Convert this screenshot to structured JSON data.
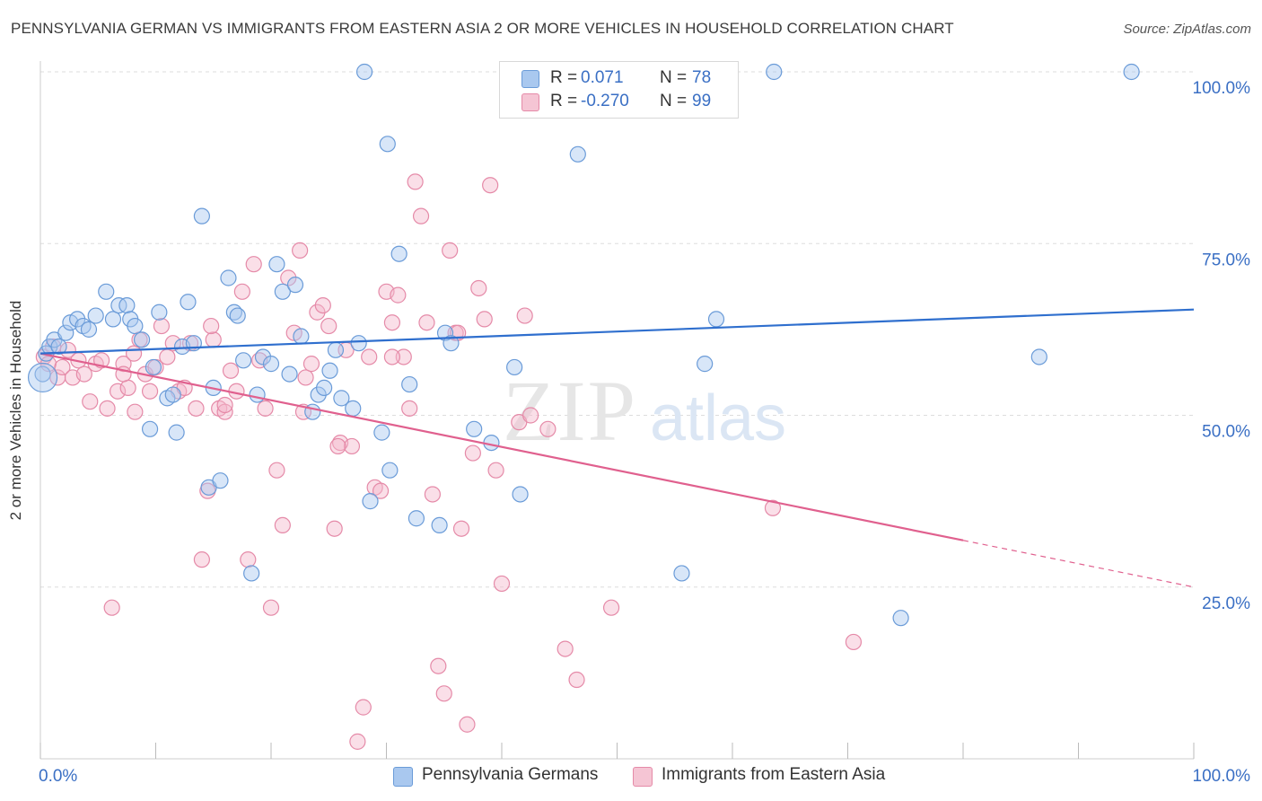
{
  "title": "PENNSYLVANIA GERMAN VS IMMIGRANTS FROM EASTERN ASIA 2 OR MORE VEHICLES IN HOUSEHOLD CORRELATION CHART",
  "source": "Source: ZipAtlas.com",
  "watermark": {
    "zip": "ZIP",
    "atlas": "atlas"
  },
  "legend": {
    "r_label": "R =",
    "n_label": "N =",
    "rows": [
      {
        "r": "0.071",
        "n": "78"
      },
      {
        "r": "-0.270",
        "n": "99"
      }
    ]
  },
  "colors": {
    "blue_fill": "#a9c8ef",
    "blue_stroke": "#6a9bd8",
    "blue_line": "#2f6fce",
    "pink_fill": "#f5b8cb",
    "pink_stroke": "#e58aa8",
    "pink_line": "#e0608e",
    "grid": "#dddddd",
    "tick_label": "#3a6fc4"
  },
  "chart_data": {
    "type": "scatter",
    "xlabel": "",
    "ylabel": "2 or more Vehicles in Household",
    "xlim": [
      0,
      100
    ],
    "ylim": [
      0,
      100
    ],
    "x_tick_labels": [
      "0.0%",
      "100.0%"
    ],
    "y_ticks": [
      25,
      50,
      75,
      100
    ],
    "y_tick_labels": [
      "25.0%",
      "50.0%",
      "75.0%",
      "100.0%"
    ],
    "grid": true,
    "legend_position": "bottom",
    "series": [
      {
        "name": "Pennsylvania Germans",
        "r": 0.071,
        "n": 78,
        "trend": {
          "x": [
            0,
            100
          ],
          "y": [
            59.0,
            65.4
          ],
          "solid_until": 100
        },
        "points": [
          [
            0.2,
            56
          ],
          [
            0.5,
            59
          ],
          [
            0.8,
            60
          ],
          [
            1.2,
            61
          ],
          [
            1.6,
            60
          ],
          [
            2.2,
            62
          ],
          [
            2.6,
            63.5
          ],
          [
            3.2,
            64
          ],
          [
            3.7,
            63
          ],
          [
            4.2,
            62.5
          ],
          [
            4.8,
            64.5
          ],
          [
            5.7,
            68
          ],
          [
            6.3,
            64
          ],
          [
            6.8,
            66
          ],
          [
            7.5,
            66
          ],
          [
            7.8,
            64
          ],
          [
            8.2,
            63
          ],
          [
            8.8,
            61
          ],
          [
            9.5,
            48
          ],
          [
            9.8,
            57
          ],
          [
            10.3,
            65
          ],
          [
            11.0,
            52.5
          ],
          [
            11.5,
            53
          ],
          [
            11.8,
            47.5
          ],
          [
            12.3,
            60
          ],
          [
            12.8,
            66.5
          ],
          [
            13.3,
            60.5
          ],
          [
            14.0,
            79
          ],
          [
            14.6,
            39.5
          ],
          [
            15.0,
            54
          ],
          [
            15.6,
            40.5
          ],
          [
            16.3,
            70
          ],
          [
            16.8,
            65
          ],
          [
            17.1,
            64.5
          ],
          [
            17.6,
            58
          ],
          [
            18.3,
            27
          ],
          [
            18.8,
            53
          ],
          [
            19.3,
            58.5
          ],
          [
            20.0,
            57.5
          ],
          [
            20.5,
            72
          ],
          [
            21.0,
            68
          ],
          [
            21.6,
            56
          ],
          [
            22.1,
            69
          ],
          [
            22.6,
            61.5
          ],
          [
            23.6,
            50.5
          ],
          [
            24.1,
            53
          ],
          [
            24.6,
            54
          ],
          [
            25.1,
            56.5
          ],
          [
            25.6,
            59.5
          ],
          [
            26.1,
            52.5
          ],
          [
            27.1,
            51
          ],
          [
            27.6,
            60.5
          ],
          [
            28.1,
            100
          ],
          [
            28.6,
            37.5
          ],
          [
            29.6,
            47.5
          ],
          [
            30.1,
            89.5
          ],
          [
            30.3,
            42
          ],
          [
            31.1,
            73.5
          ],
          [
            32.0,
            54.5
          ],
          [
            32.6,
            35
          ],
          [
            34.6,
            34
          ],
          [
            35.1,
            62
          ],
          [
            35.6,
            60.5
          ],
          [
            37.6,
            48
          ],
          [
            39.1,
            46
          ],
          [
            41.1,
            57
          ],
          [
            41.6,
            38.5
          ],
          [
            45.6,
            100
          ],
          [
            46.1,
            100
          ],
          [
            46.6,
            88
          ],
          [
            53.6,
            100
          ],
          [
            55.6,
            27
          ],
          [
            57.6,
            57.5
          ],
          [
            58.6,
            64
          ],
          [
            63.6,
            100
          ],
          [
            74.6,
            20.5
          ],
          [
            86.6,
            58.5
          ],
          [
            94.6,
            100
          ]
        ]
      },
      {
        "name": "Immigrants from Eastern Asia",
        "r": -0.27,
        "n": 99,
        "trend": {
          "x": [
            0,
            100
          ],
          "y": [
            59.0,
            25.0
          ],
          "solid_until": 80
        },
        "points": [
          [
            0.3,
            58.5
          ],
          [
            0.7,
            57.5
          ],
          [
            1.1,
            60
          ],
          [
            1.5,
            55.5
          ],
          [
            1.9,
            57
          ],
          [
            2.4,
            59.5
          ],
          [
            2.8,
            55.5
          ],
          [
            3.3,
            58
          ],
          [
            3.8,
            56
          ],
          [
            4.3,
            52
          ],
          [
            4.8,
            57.5
          ],
          [
            5.3,
            58
          ],
          [
            5.8,
            51
          ],
          [
            6.2,
            22
          ],
          [
            6.7,
            53.5
          ],
          [
            7.2,
            57.5
          ],
          [
            7.6,
            54
          ],
          [
            8.1,
            59
          ],
          [
            8.6,
            61
          ],
          [
            9.1,
            56
          ],
          [
            9.5,
            53.5
          ],
          [
            10.0,
            57
          ],
          [
            10.5,
            63
          ],
          [
            11.0,
            58.5
          ],
          [
            11.5,
            60.5
          ],
          [
            12.0,
            53.5
          ],
          [
            12.5,
            54
          ],
          [
            13.0,
            60.5
          ],
          [
            13.5,
            51
          ],
          [
            14.0,
            29
          ],
          [
            14.5,
            39
          ],
          [
            15.0,
            61
          ],
          [
            15.5,
            51
          ],
          [
            16.0,
            50.5
          ],
          [
            16.5,
            56.5
          ],
          [
            17.0,
            53.5
          ],
          [
            17.5,
            68
          ],
          [
            18.0,
            29
          ],
          [
            18.5,
            72
          ],
          [
            19.0,
            58
          ],
          [
            19.5,
            51
          ],
          [
            20.0,
            22
          ],
          [
            20.5,
            42
          ],
          [
            21.0,
            34
          ],
          [
            21.5,
            70
          ],
          [
            22.0,
            62
          ],
          [
            22.5,
            74
          ],
          [
            23.0,
            55.5
          ],
          [
            23.5,
            57.5
          ],
          [
            24.0,
            65
          ],
          [
            24.5,
            66
          ],
          [
            25.0,
            63
          ],
          [
            25.5,
            33.5
          ],
          [
            26.0,
            46
          ],
          [
            26.5,
            59.5
          ],
          [
            27.0,
            45.5
          ],
          [
            27.5,
            2.5
          ],
          [
            28.0,
            7.5
          ],
          [
            28.5,
            58.5
          ],
          [
            29.0,
            39.5
          ],
          [
            29.5,
            39
          ],
          [
            30.0,
            68
          ],
          [
            30.5,
            63.5
          ],
          [
            31.0,
            67.5
          ],
          [
            31.5,
            58.5
          ],
          [
            32.0,
            51
          ],
          [
            32.5,
            84
          ],
          [
            33.0,
            79
          ],
          [
            33.5,
            63.5
          ],
          [
            34.0,
            38.5
          ],
          [
            34.5,
            13.5
          ],
          [
            35.0,
            9.5
          ],
          [
            35.5,
            74
          ],
          [
            36.0,
            62
          ],
          [
            36.5,
            33.5
          ],
          [
            37.0,
            5
          ],
          [
            37.5,
            44.5
          ],
          [
            38.0,
            68.5
          ],
          [
            38.5,
            64
          ],
          [
            39.0,
            83.5
          ],
          [
            39.5,
            42
          ],
          [
            40.0,
            25.5
          ],
          [
            41.5,
            49
          ],
          [
            42.0,
            64.5
          ],
          [
            45.5,
            16
          ],
          [
            46.5,
            11.5
          ],
          [
            49.5,
            22
          ],
          [
            63.5,
            36.5
          ],
          [
            70.5,
            17
          ],
          [
            7.2,
            56
          ],
          [
            8.2,
            50.5
          ],
          [
            14.8,
            63
          ],
          [
            16.0,
            51.5
          ],
          [
            22.8,
            50.5
          ],
          [
            25.8,
            45.5
          ],
          [
            30.5,
            58.5
          ],
          [
            36.2,
            62
          ],
          [
            42.5,
            50
          ],
          [
            44.0,
            48
          ]
        ]
      }
    ]
  }
}
